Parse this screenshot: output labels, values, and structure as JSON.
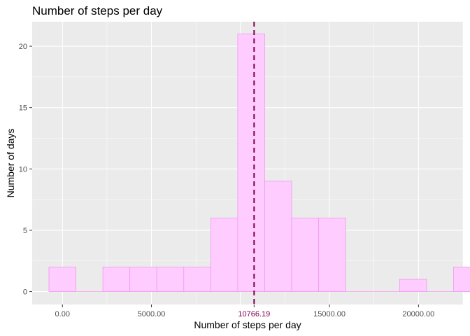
{
  "chart_data": {
    "type": "bar",
    "title": "Number of steps per day",
    "xlabel": "Number of steps per day",
    "ylabel": "Number of days",
    "xlim": [
      -1700,
      22500
    ],
    "ylim": [
      -1.05,
      22
    ],
    "bin_width": 1515,
    "bin_start": -758,
    "counts": [
      2,
      0,
      2,
      2,
      2,
      2,
      6,
      21,
      9,
      6,
      6,
      0,
      0,
      1,
      0,
      2
    ],
    "x_ticks": [
      0,
      5000,
      15000,
      20000
    ],
    "x_tick_labels": [
      "0.00",
      "5000.00",
      "15000.00",
      "20000.00"
    ],
    "y_ticks": [
      0,
      5,
      10,
      15,
      20
    ],
    "y_tick_labels": [
      "0",
      "5",
      "10",
      "15",
      "20"
    ],
    "mean": 10766.19,
    "mean_label": "10766.19",
    "bar_fill": "#ffccff",
    "bar_stroke": "#ee99ee",
    "mean_line_color": "#800050",
    "mean_label_color": "#800050",
    "panel_background": "#ebebeb",
    "grid": true,
    "legend": "none"
  }
}
